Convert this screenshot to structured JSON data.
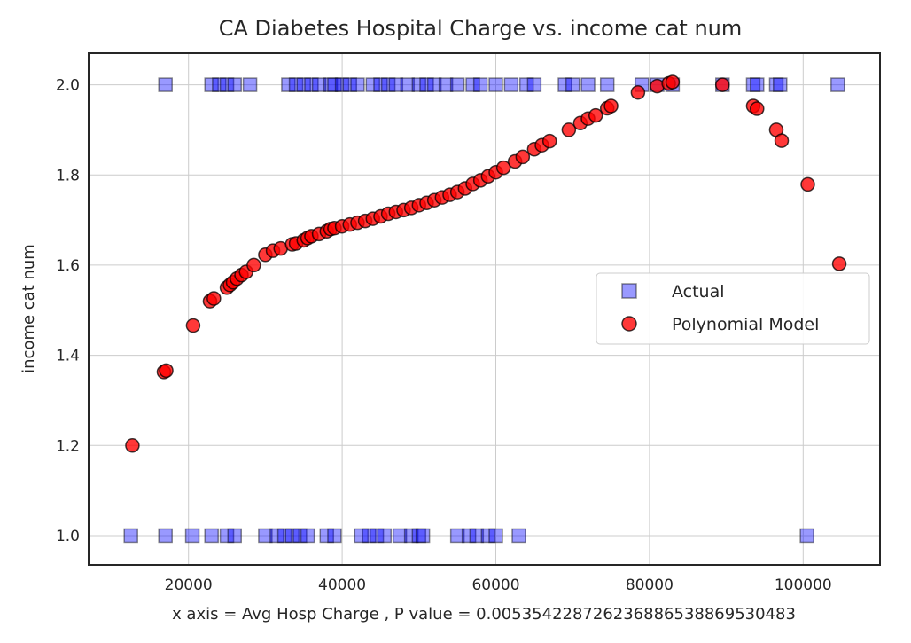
{
  "chart_data": {
    "type": "scatter",
    "title": "CA Diabetes Hospital Charge vs. income cat num",
    "xlabel": "x axis = Avg Hosp Charge , P value = 0.005354228726236886538869530483",
    "ylabel": "income cat num",
    "xlim": [
      7000,
      110000
    ],
    "ylim": [
      0.935,
      2.07
    ],
    "x_ticks": [
      20000,
      40000,
      60000,
      80000,
      100000
    ],
    "x_tick_labels": [
      "20000",
      "40000",
      "60000",
      "80000",
      "100000"
    ],
    "y_ticks": [
      1.0,
      1.2,
      1.4,
      1.6,
      1.8,
      2.0
    ],
    "y_tick_labels": [
      "1.0",
      "1.2",
      "1.4",
      "1.6",
      "1.8",
      "2.0"
    ],
    "grid": true,
    "legend_position": "center-right",
    "series": [
      {
        "name": "Actual",
        "marker": "square",
        "color": "#0000ff",
        "points": [
          [
            17000,
            2
          ],
          [
            23000,
            2
          ],
          [
            24000,
            2
          ],
          [
            25000,
            2
          ],
          [
            26000,
            2
          ],
          [
            28000,
            2
          ],
          [
            33000,
            2
          ],
          [
            34000,
            2
          ],
          [
            35000,
            2
          ],
          [
            36000,
            2
          ],
          [
            37000,
            2
          ],
          [
            38500,
            2
          ],
          [
            39000,
            2
          ],
          [
            40000,
            2
          ],
          [
            41000,
            2
          ],
          [
            42000,
            2
          ],
          [
            44000,
            2
          ],
          [
            45000,
            2
          ],
          [
            46000,
            2
          ],
          [
            47000,
            2
          ],
          [
            48500,
            2
          ],
          [
            50000,
            2
          ],
          [
            51000,
            2
          ],
          [
            52000,
            2
          ],
          [
            53500,
            2
          ],
          [
            55000,
            2
          ],
          [
            57000,
            2
          ],
          [
            58000,
            2
          ],
          [
            60000,
            2
          ],
          [
            62000,
            2
          ],
          [
            64000,
            2
          ],
          [
            65000,
            2
          ],
          [
            69000,
            2
          ],
          [
            70000,
            2
          ],
          [
            72000,
            2
          ],
          [
            74500,
            2
          ],
          [
            79000,
            2
          ],
          [
            81000,
            2
          ],
          [
            83000,
            2
          ],
          [
            89500,
            2
          ],
          [
            93500,
            2
          ],
          [
            94000,
            2
          ],
          [
            96500,
            2
          ],
          [
            97000,
            2
          ],
          [
            104500,
            2
          ],
          [
            12500,
            1
          ],
          [
            17000,
            1
          ],
          [
            20500,
            1
          ],
          [
            23000,
            1
          ],
          [
            25000,
            1
          ],
          [
            26000,
            1
          ],
          [
            30000,
            1
          ],
          [
            31500,
            1
          ],
          [
            32500,
            1
          ],
          [
            33500,
            1
          ],
          [
            34500,
            1
          ],
          [
            35500,
            1
          ],
          [
            38000,
            1
          ],
          [
            39000,
            1
          ],
          [
            42500,
            1
          ],
          [
            43500,
            1
          ],
          [
            44500,
            1
          ],
          [
            45500,
            1
          ],
          [
            47500,
            1
          ],
          [
            49000,
            1
          ],
          [
            50000,
            1
          ],
          [
            50500,
            1
          ],
          [
            55000,
            1
          ],
          [
            56500,
            1
          ],
          [
            57500,
            1
          ],
          [
            59000,
            1
          ],
          [
            60000,
            1
          ],
          [
            63000,
            1
          ],
          [
            100500,
            1
          ]
        ]
      },
      {
        "name": "Polynomial Model",
        "marker": "circle",
        "color": "#ff0000",
        "points": [
          [
            12700,
            1.2
          ],
          [
            16800,
            1.363
          ],
          [
            17100,
            1.366
          ],
          [
            20600,
            1.466
          ],
          [
            22800,
            1.52
          ],
          [
            23300,
            1.526
          ],
          [
            25000,
            1.55
          ],
          [
            25400,
            1.556
          ],
          [
            25800,
            1.562
          ],
          [
            26300,
            1.57
          ],
          [
            26900,
            1.578
          ],
          [
            27500,
            1.585
          ],
          [
            28500,
            1.6
          ],
          [
            30000,
            1.623
          ],
          [
            31000,
            1.632
          ],
          [
            32000,
            1.637
          ],
          [
            33500,
            1.646
          ],
          [
            34000,
            1.648
          ],
          [
            35000,
            1.655
          ],
          [
            35500,
            1.66
          ],
          [
            36000,
            1.664
          ],
          [
            37000,
            1.669
          ],
          [
            38000,
            1.675
          ],
          [
            38500,
            1.68
          ],
          [
            39000,
            1.682
          ],
          [
            40000,
            1.686
          ],
          [
            41000,
            1.69
          ],
          [
            42000,
            1.694
          ],
          [
            43000,
            1.698
          ],
          [
            44000,
            1.703
          ],
          [
            45000,
            1.708
          ],
          [
            46000,
            1.714
          ],
          [
            47000,
            1.718
          ],
          [
            48000,
            1.722
          ],
          [
            49000,
            1.727
          ],
          [
            50000,
            1.733
          ],
          [
            51000,
            1.738
          ],
          [
            52000,
            1.744
          ],
          [
            53000,
            1.75
          ],
          [
            54000,
            1.756
          ],
          [
            55000,
            1.762
          ],
          [
            56000,
            1.77
          ],
          [
            57000,
            1.78
          ],
          [
            58000,
            1.788
          ],
          [
            59000,
            1.797
          ],
          [
            60000,
            1.806
          ],
          [
            61000,
            1.816
          ],
          [
            62500,
            1.83
          ],
          [
            63500,
            1.84
          ],
          [
            65000,
            1.857
          ],
          [
            66000,
            1.866
          ],
          [
            67000,
            1.875
          ],
          [
            69500,
            1.9
          ],
          [
            71000,
            1.915
          ],
          [
            72000,
            1.925
          ],
          [
            73000,
            1.932
          ],
          [
            74500,
            1.948
          ],
          [
            75000,
            1.953
          ],
          [
            78500,
            1.983
          ],
          [
            81000,
            1.997
          ],
          [
            82500,
            2.003
          ],
          [
            83000,
            2.006
          ],
          [
            89500,
            2.0
          ],
          [
            93500,
            1.953
          ],
          [
            94000,
            1.947
          ],
          [
            96500,
            1.9
          ],
          [
            97200,
            1.876
          ],
          [
            100600,
            1.779
          ],
          [
            104700,
            1.603
          ]
        ]
      }
    ]
  }
}
